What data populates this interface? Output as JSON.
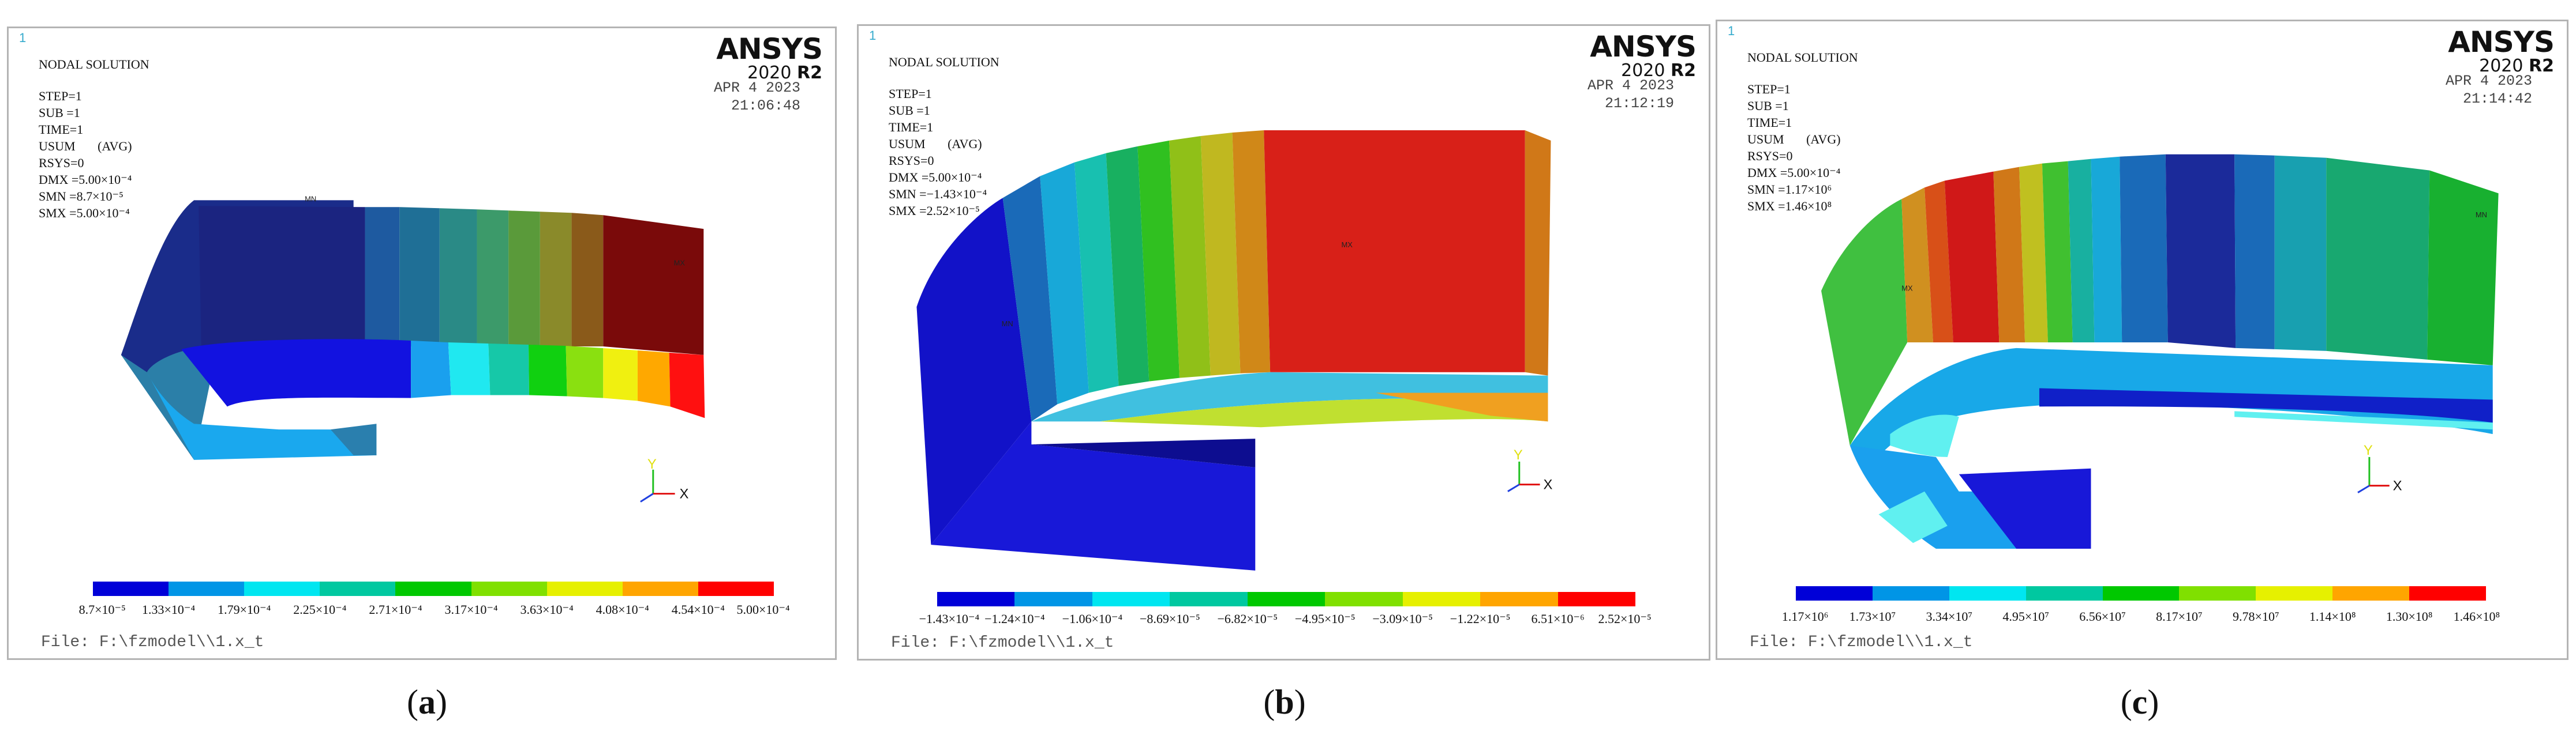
{
  "panels": [
    {
      "id": "a",
      "window_number": "1",
      "title": "NODAL SOLUTION",
      "logo": {
        "name": "ANSYS",
        "version_year": "2020",
        "version_rev": "R2"
      },
      "header_lines": [
        "STEP=1",
        "SUB =1",
        "TIME=1",
        "USUM       (AVG)",
        "RSYS=0",
        "DMX =5.00×10⁻⁴",
        "SMN =8.7×10⁻⁵",
        "SMX =5.00×10⁻⁴"
      ],
      "date": "APR  4 2023",
      "time": "21:06:48",
      "min_label": "MN",
      "max_label": "MX",
      "triad": {
        "y": "Y",
        "x": "X"
      },
      "legend_colors": [
        "#0000d8",
        "#0095e6",
        "#00e6f0",
        "#00c8a0",
        "#00c800",
        "#80e000",
        "#e6f000",
        "#ffa500",
        "#ff0000"
      ],
      "legend_values": [
        "8.7×10⁻⁵",
        "1.33×10⁻⁴",
        "1.79×10⁻⁴",
        "2.25×10⁻⁴",
        "2.71×10⁻⁴",
        "3.17×10⁻⁴",
        "3.63×10⁻⁴",
        "4.08×10⁻⁴",
        "4.54×10⁻⁴",
        "5.00×10⁻⁴"
      ],
      "file": "File: F:\\fzmodel\\\\1.x_t",
      "caption": {
        "open": "(",
        "letter": "a",
        "close": ")"
      }
    },
    {
      "id": "b",
      "window_number": "1",
      "title": "NODAL SOLUTION",
      "logo": {
        "name": "ANSYS",
        "version_year": "2020",
        "version_rev": "R2"
      },
      "header_lines": [
        "STEP=1",
        "SUB =1",
        "TIME=1",
        "USUM       (AVG)",
        "RSYS=0",
        "DMX =5.00×10⁻⁴",
        "SMN =−1.43×10⁻⁴",
        "SMX =2.52×10⁻⁵"
      ],
      "date": "APR  4 2023",
      "time": "21:12:19",
      "min_label": "MN",
      "max_label": "MX",
      "triad": {
        "y": "Y",
        "x": "X"
      },
      "legend_colors": [
        "#0000d8",
        "#0095e6",
        "#00e6f0",
        "#00c8a0",
        "#00c800",
        "#80e000",
        "#e6f000",
        "#ffa500",
        "#ff0000"
      ],
      "legend_values": [
        "−1.43×10⁻⁴",
        "−1.24×10⁻⁴",
        "−1.06×10⁻⁴",
        "−8.69×10⁻⁵",
        "−6.82×10⁻⁵",
        "−4.95×10⁻⁵",
        "−3.09×10⁻⁵",
        "−1.22×10⁻⁵",
        "6.51×10⁻⁶",
        "2.52×10⁻⁵"
      ],
      "file": "File: F:\\fzmodel\\\\1.x_t",
      "caption": {
        "open": "(",
        "letter": "b",
        "close": ")"
      }
    },
    {
      "id": "c",
      "window_number": "1",
      "title": "NODAL SOLUTION",
      "logo": {
        "name": "ANSYS",
        "version_year": "2020",
        "version_rev": "R2"
      },
      "header_lines": [
        "STEP=1",
        "SUB =1",
        "TIME=1",
        "USUM       (AVG)",
        "RSYS=0",
        "DMX =5.00×10⁻⁴",
        "SMN =1.17×10⁶",
        "SMX =1.46×10⁸"
      ],
      "date": "APR  4 2023",
      "time": "21:14:42",
      "min_label": "MN",
      "max_label": "MX",
      "triad": {
        "y": "Y",
        "x": "X"
      },
      "legend_colors": [
        "#0000d8",
        "#0095e6",
        "#00e6f0",
        "#00c8a0",
        "#00c800",
        "#80e000",
        "#e6f000",
        "#ffa500",
        "#ff0000"
      ],
      "legend_values": [
        "1.17×10⁶",
        "1.73×10⁷",
        "3.34×10⁷",
        "4.95×10⁷",
        "6.56×10⁷",
        "8.17×10⁷",
        "9.78×10⁷",
        "1.14×10⁸",
        "1.30×10⁸",
        "1.46×10⁸"
      ],
      "file": "File: F:\\fzmodel\\\\1.x_t",
      "caption": {
        "open": "(",
        "letter": "c",
        "close": ")"
      }
    }
  ]
}
